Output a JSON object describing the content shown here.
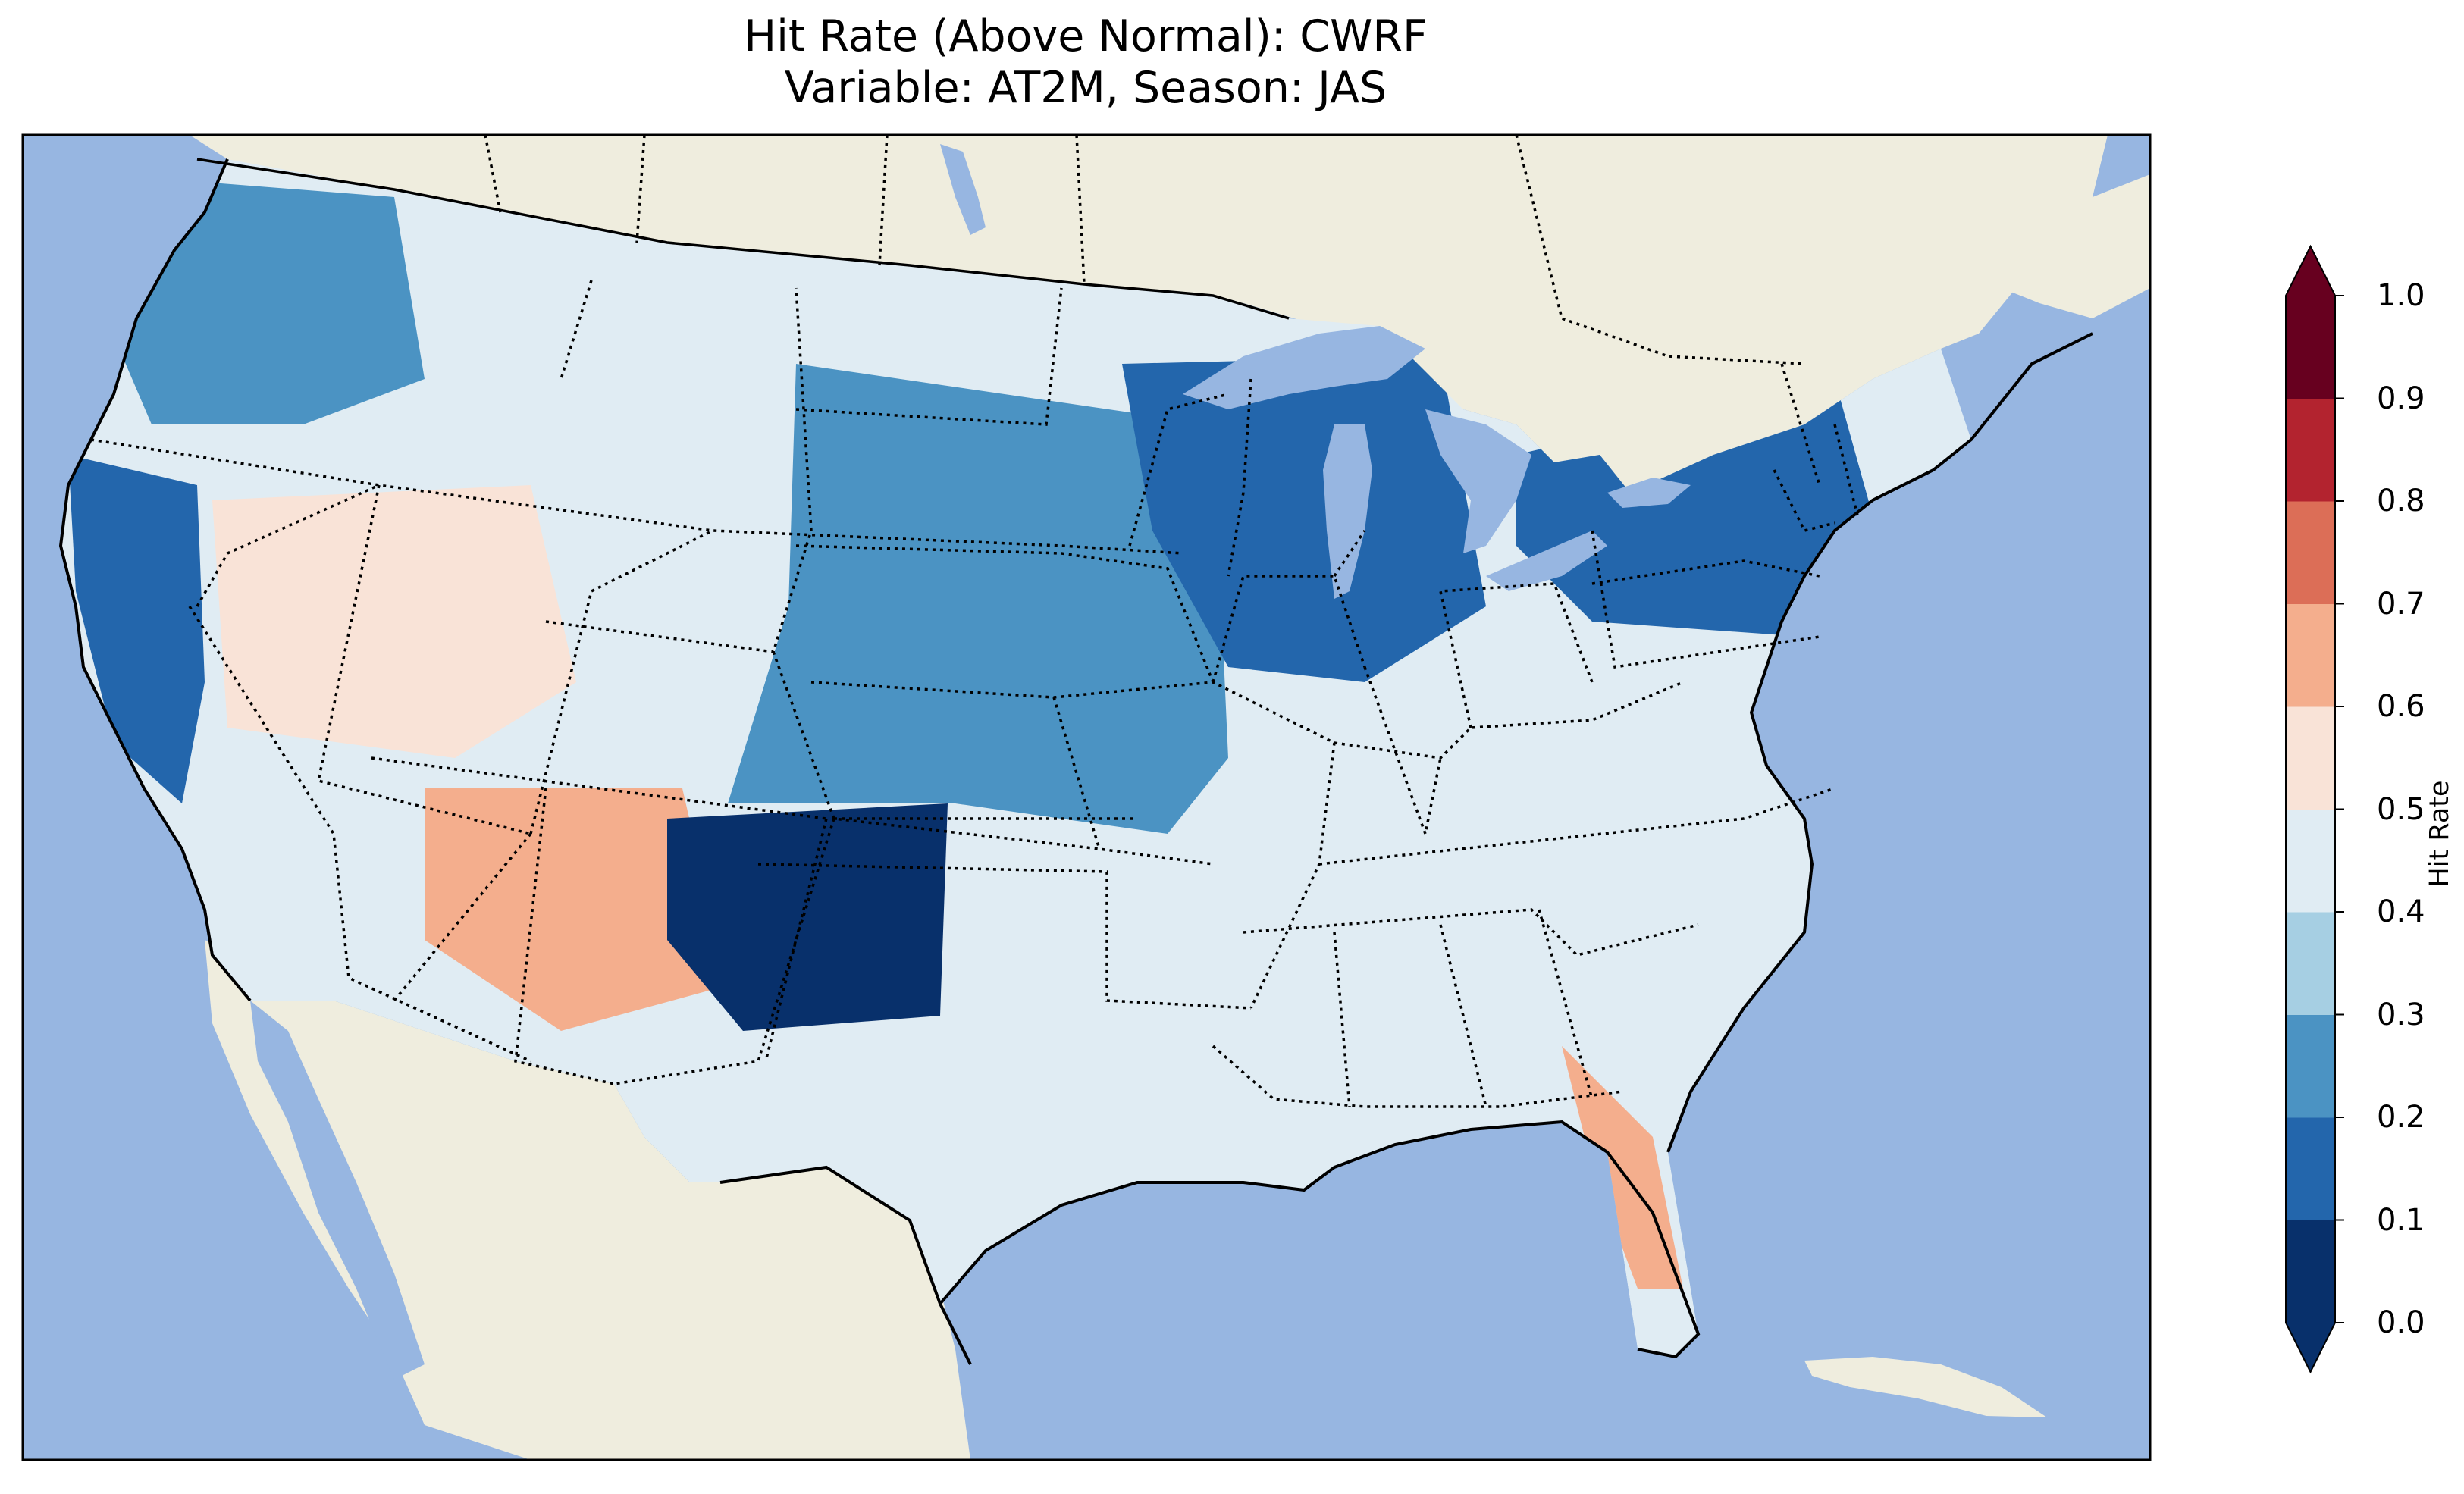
{
  "title": {
    "line1": "Hit Rate (Above Normal): CWRF",
    "line2": "Variable: AT2M, Season: JAS"
  },
  "colors": {
    "ocean": "#97b6e1",
    "land": "#efedde",
    "lakes": "#97b6e1"
  },
  "colorbar": {
    "label": "Hit Rate",
    "extend": "both",
    "ticks": [
      "0.0",
      "0.1",
      "0.2",
      "0.3",
      "0.4",
      "0.5",
      "0.6",
      "0.7",
      "0.8",
      "0.9",
      "1.0"
    ],
    "bins": [
      {
        "range": [
          0.0,
          0.1
        ],
        "color": "#08306b"
      },
      {
        "range": [
          0.1,
          0.2
        ],
        "color": "#2366ac"
      },
      {
        "range": [
          0.2,
          0.3
        ],
        "color": "#4b93c3"
      },
      {
        "range": [
          0.3,
          0.4
        ],
        "color": "#a6cfe3"
      },
      {
        "range": [
          0.4,
          0.5
        ],
        "color": "#e0ecf3"
      },
      {
        "range": [
          0.5,
          0.6
        ],
        "color": "#f9e3d7"
      },
      {
        "range": [
          0.6,
          0.7
        ],
        "color": "#f4ae8d"
      },
      {
        "range": [
          0.7,
          0.8
        ],
        "color": "#dc6e57"
      },
      {
        "range": [
          0.8,
          0.9
        ],
        "color": "#b3232f"
      },
      {
        "range": [
          0.9,
          1.0
        ],
        "color": "#67001f"
      }
    ],
    "under_color": "#08306b",
    "over_color": "#67001f"
  },
  "regions": [
    {
      "name": "Pacific Northwest",
      "hit_rate": 0.25
    },
    {
      "name": "California coast",
      "hit_rate": 0.15
    },
    {
      "name": "Great Basin",
      "hit_rate": 0.55
    },
    {
      "name": "Desert Southwest",
      "hit_rate": 0.65
    },
    {
      "name": "Southern Plains",
      "hit_rate": 0.05
    },
    {
      "name": "Central Plains",
      "hit_rate": 0.25
    },
    {
      "name": "Upper Midwest / Great Lakes",
      "hit_rate": 0.15
    },
    {
      "name": "Northeast",
      "hit_rate": 0.15
    },
    {
      "name": "Gulf Coast",
      "hit_rate": 0.45
    },
    {
      "name": "Florida",
      "hit_rate": 0.6
    }
  ]
}
